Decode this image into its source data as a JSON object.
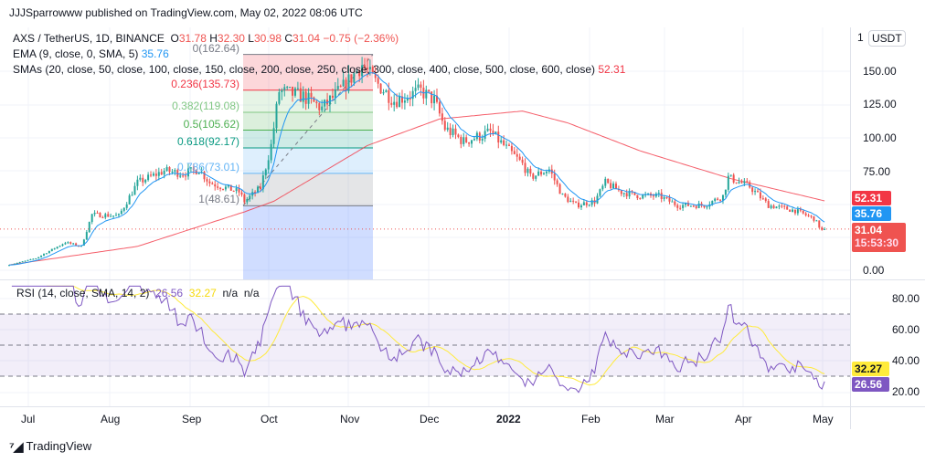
{
  "header": {
    "published": "JJJSparrowww published on TradingView.com, May 02, 2022 08:06 UTC"
  },
  "legend": {
    "symbol": "AXS / TetherUS, 1D, BINANCE",
    "o_label": "O",
    "o": "31.78",
    "h_label": "H",
    "h": "32.30",
    "l_label": "L",
    "l": "30.98",
    "c_label": "C",
    "c": "31.04",
    "change": "−0.75 (−2.36%)",
    "ema_label": "EMA (9, close, 0, SMA, 5)",
    "ema_value": "35.76",
    "sma_label": "SMAs (20, close, 50, close, 100, close, 150, close, 200, close, 250, close, 300, close, 400, close, 500, close, 600, close)",
    "sma_value": "52.31"
  },
  "currency_button": "USDT",
  "price_axis": {
    "top_partial": "1",
    "ticks": [
      "150.00",
      "125.00",
      "100.00",
      "75.00",
      "0.00"
    ]
  },
  "price_tags": {
    "sma": "52.31",
    "ema": "35.76",
    "last": "31.04",
    "countdown": "15:53:30"
  },
  "rsi": {
    "label": "RSI (14, close, SMA, 14, 2)",
    "value": "26.56",
    "sma": "32.27",
    "na1": "n/a",
    "na2": "n/a",
    "ticks": [
      "80.00",
      "60.00",
      "40.00",
      "20.00"
    ]
  },
  "time_axis": [
    "Jul",
    "Aug",
    "Sep",
    "Oct",
    "Nov",
    "Dec",
    "2022",
    "Feb",
    "Mar",
    "Apr",
    "May"
  ],
  "fib_labels": [
    "0(162.64)",
    "0.236(135.73)",
    "0.382(119.08)",
    "0.5(105.62)",
    "0.618(92.17)",
    "0.786(73.01)",
    "1(48.61)"
  ],
  "footer": {
    "brand": "TradingView"
  },
  "colors": {
    "up": "#26a69a",
    "down": "#ef5350",
    "ema": "#2196f3",
    "sma": "#f23645",
    "rsi": "#7e57c2",
    "rsi_sma": "#ffeb3b"
  },
  "chart_data": {
    "type": "candlestick",
    "title": "AXS / TetherUS, 1D, BINANCE",
    "ylim": [
      0,
      170
    ],
    "rsi_ylim": [
      10,
      90
    ],
    "x_ticks": [
      "Jul",
      "Aug",
      "Sep",
      "Oct",
      "Nov",
      "Dec",
      "2022",
      "Feb",
      "Mar",
      "Apr",
      "May"
    ],
    "close_anchors_day_value": [
      [
        0,
        4.1
      ],
      [
        10,
        9
      ],
      [
        21,
        21
      ],
      [
        27,
        18
      ],
      [
        31,
        42
      ],
      [
        41,
        41
      ],
      [
        48,
        66
      ],
      [
        58,
        75
      ],
      [
        65,
        73
      ],
      [
        71,
        76
      ],
      [
        75,
        66
      ],
      [
        86,
        59
      ],
      [
        88,
        52
      ],
      [
        94,
        62
      ],
      [
        98,
        94
      ],
      [
        101,
        135
      ],
      [
        110,
        131
      ],
      [
        117,
        122
      ],
      [
        125,
        138
      ],
      [
        132,
        155
      ],
      [
        137,
        142
      ],
      [
        144,
        128
      ],
      [
        154,
        135
      ],
      [
        159,
        128
      ],
      [
        163,
        107
      ],
      [
        170,
        97
      ],
      [
        180,
        104
      ],
      [
        185,
        94
      ],
      [
        192,
        80
      ],
      [
        195,
        70
      ],
      [
        202,
        76
      ],
      [
        207,
        56
      ],
      [
        212,
        49
      ],
      [
        219,
        52
      ],
      [
        223,
        66
      ],
      [
        229,
        59
      ],
      [
        236,
        56
      ],
      [
        243,
        56
      ],
      [
        250,
        49
      ],
      [
        260,
        49
      ],
      [
        267,
        56
      ],
      [
        269,
        70
      ],
      [
        277,
        63
      ],
      [
        284,
        49
      ],
      [
        294,
        45
      ],
      [
        301,
        39
      ],
      [
        304,
        30
      ],
      [
        305,
        31.04
      ]
    ],
    "sma_anchors_day_value": [
      [
        0,
        4
      ],
      [
        48,
        18
      ],
      [
        88,
        44
      ],
      [
        99,
        52
      ],
      [
        134,
        94
      ],
      [
        161,
        114
      ],
      [
        192,
        120
      ],
      [
        209,
        111
      ],
      [
        236,
        90
      ],
      [
        270,
        69
      ],
      [
        305,
        52.31
      ]
    ],
    "fib_levels": [
      {
        "ratio": 0,
        "price": 162.64
      },
      {
        "ratio": 0.236,
        "price": 135.73
      },
      {
        "ratio": 0.382,
        "price": 119.08
      },
      {
        "ratio": 0.5,
        "price": 105.62
      },
      {
        "ratio": 0.618,
        "price": 92.17
      },
      {
        "ratio": 0.786,
        "price": 73.01
      },
      {
        "ratio": 1,
        "price": 48.61
      }
    ],
    "rsi_levels": [
      70,
      50,
      30
    ]
  }
}
